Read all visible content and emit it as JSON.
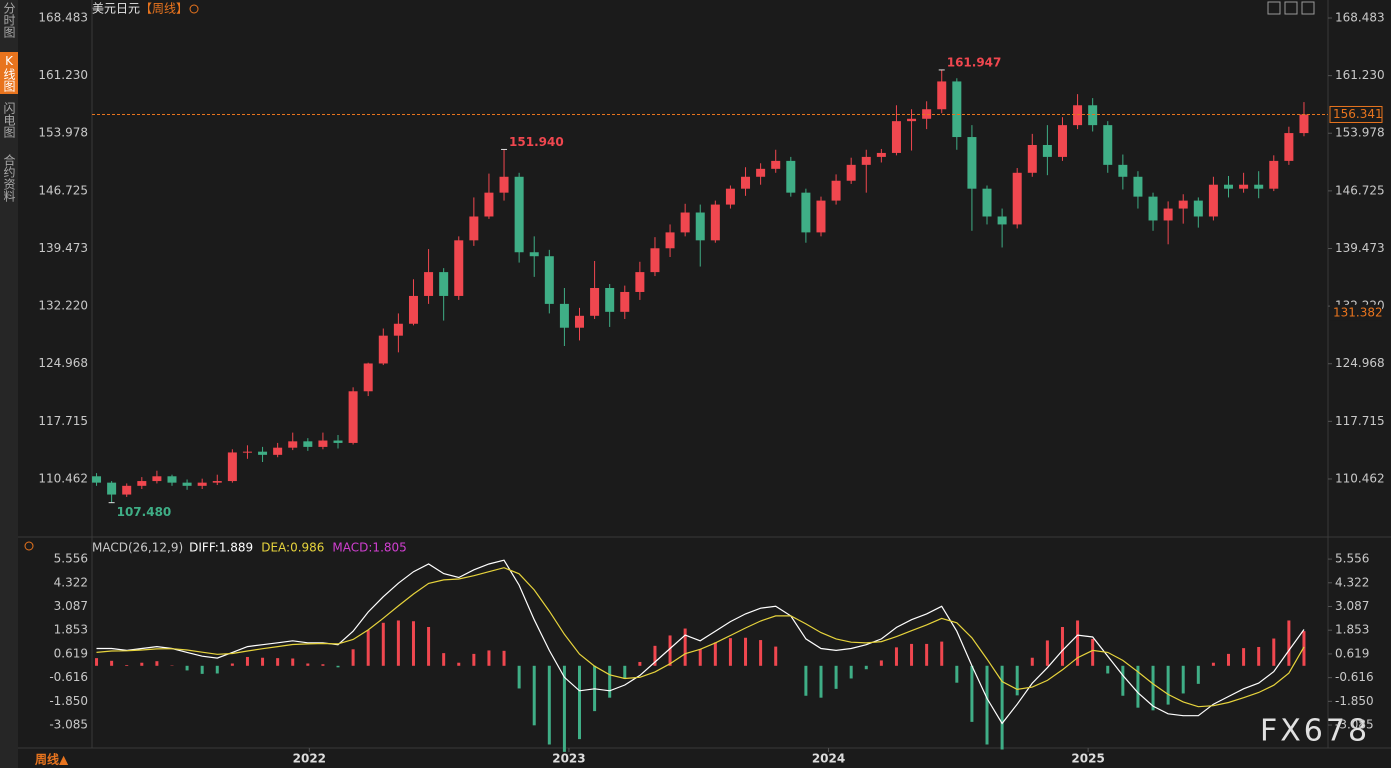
{
  "chart_data": {
    "type": "candlestick",
    "title": "美元日元",
    "period": "【周线】",
    "colors": {
      "up": "#f0474f",
      "down": "#3fae86"
    },
    "candles": [
      [
        110.8,
        111.2,
        109.6,
        110.0
      ],
      [
        110.0,
        110.2,
        107.48,
        108.5
      ],
      [
        108.5,
        109.9,
        108.2,
        109.6
      ],
      [
        109.6,
        110.7,
        109.2,
        110.2
      ],
      [
        110.2,
        111.5,
        109.9,
        110.8
      ],
      [
        110.8,
        111.0,
        109.6,
        110.0
      ],
      [
        110.0,
        110.4,
        109.1,
        109.6
      ],
      [
        109.6,
        110.5,
        109.2,
        110.0
      ],
      [
        110.0,
        111.0,
        109.7,
        110.2
      ],
      [
        110.2,
        114.2,
        110.0,
        113.8
      ],
      [
        113.8,
        114.7,
        113.0,
        113.9
      ],
      [
        113.9,
        114.5,
        112.6,
        113.5
      ],
      [
        113.5,
        115.0,
        113.2,
        114.4
      ],
      [
        114.4,
        116.3,
        114.1,
        115.2
      ],
      [
        115.2,
        115.6,
        114.0,
        114.5
      ],
      [
        114.5,
        116.3,
        114.2,
        115.3
      ],
      [
        115.3,
        116.0,
        114.3,
        115.0
      ],
      [
        115.0,
        122.0,
        114.8,
        121.5
      ],
      [
        121.5,
        125.1,
        120.9,
        125.0
      ],
      [
        125.0,
        129.4,
        124.8,
        128.5
      ],
      [
        128.5,
        131.3,
        126.4,
        130.0
      ],
      [
        130.0,
        135.6,
        129.8,
        133.5
      ],
      [
        133.5,
        139.4,
        132.5,
        136.5
      ],
      [
        136.5,
        137.0,
        130.4,
        133.5
      ],
      [
        133.5,
        141.0,
        133.0,
        140.5
      ],
      [
        140.5,
        145.9,
        139.8,
        143.5
      ],
      [
        143.5,
        148.9,
        143.2,
        146.5
      ],
      [
        146.5,
        151.94,
        145.5,
        148.5
      ],
      [
        148.5,
        149.0,
        137.7,
        139.0
      ],
      [
        139.0,
        141.0,
        135.9,
        138.5
      ],
      [
        138.5,
        139.3,
        131.3,
        132.5
      ],
      [
        132.5,
        134.5,
        127.2,
        129.5
      ],
      [
        129.5,
        132.0,
        127.9,
        131.0
      ],
      [
        131.0,
        137.9,
        130.6,
        134.5
      ],
      [
        134.5,
        135.0,
        129.6,
        131.5
      ],
      [
        131.5,
        134.8,
        130.6,
        134.0
      ],
      [
        134.0,
        137.8,
        133.0,
        136.5
      ],
      [
        136.5,
        140.9,
        136.0,
        139.5
      ],
      [
        139.5,
        142.5,
        138.4,
        141.5
      ],
      [
        141.5,
        145.1,
        141.0,
        144.0
      ],
      [
        144.0,
        145.0,
        137.2,
        140.5
      ],
      [
        140.5,
        145.5,
        140.2,
        145.0
      ],
      [
        145.0,
        147.4,
        144.5,
        147.0
      ],
      [
        147.0,
        149.7,
        146.1,
        148.5
      ],
      [
        148.5,
        150.2,
        147.5,
        149.5
      ],
      [
        149.5,
        151.9,
        149.0,
        150.5
      ],
      [
        150.5,
        151.0,
        146.0,
        146.5
      ],
      [
        146.5,
        147.0,
        140.2,
        141.5
      ],
      [
        141.5,
        146.0,
        141.0,
        145.5
      ],
      [
        145.5,
        148.8,
        145.0,
        148.0
      ],
      [
        148.0,
        150.9,
        147.6,
        150.0
      ],
      [
        150.0,
        151.9,
        146.5,
        151.0
      ],
      [
        151.0,
        152.0,
        150.3,
        151.5
      ],
      [
        151.5,
        157.5,
        151.2,
        155.5
      ],
      [
        155.5,
        157.0,
        151.8,
        155.8
      ],
      [
        155.8,
        158.0,
        154.5,
        157.0
      ],
      [
        157.0,
        161.947,
        156.5,
        160.5
      ],
      [
        160.5,
        160.9,
        151.9,
        153.5
      ],
      [
        153.5,
        155.0,
        141.7,
        147.0
      ],
      [
        147.0,
        147.4,
        142.5,
        143.5
      ],
      [
        143.5,
        144.5,
        139.6,
        142.5
      ],
      [
        142.5,
        149.6,
        142.0,
        149.0
      ],
      [
        149.0,
        153.9,
        148.5,
        152.5
      ],
      [
        152.5,
        155.0,
        148.7,
        151.0
      ],
      [
        151.0,
        156.0,
        150.5,
        155.0
      ],
      [
        155.0,
        158.9,
        154.5,
        157.5
      ],
      [
        157.5,
        158.4,
        154.2,
        155.0
      ],
      [
        155.0,
        155.5,
        149.0,
        150.0
      ],
      [
        150.0,
        151.3,
        146.9,
        148.5
      ],
      [
        148.5,
        149.2,
        144.5,
        146.0
      ],
      [
        146.0,
        146.5,
        141.7,
        143.0
      ],
      [
        143.0,
        145.4,
        140.0,
        144.5
      ],
      [
        144.5,
        146.3,
        142.6,
        145.5
      ],
      [
        145.5,
        145.9,
        142.1,
        143.5
      ],
      [
        143.5,
        148.5,
        143.0,
        147.5
      ],
      [
        147.5,
        148.6,
        145.9,
        147.0
      ],
      [
        147.0,
        149.0,
        146.5,
        147.5
      ],
      [
        147.5,
        149.2,
        145.8,
        147.0
      ],
      [
        147.0,
        151.2,
        146.7,
        150.5
      ],
      [
        150.5,
        154.8,
        150.0,
        154.0
      ],
      [
        154.0,
        157.9,
        153.6,
        156.341
      ]
    ],
    "xlim": [
      -0.3,
      80.4
    ],
    "xticks": [
      {
        "value": 14.1,
        "label": "2022"
      },
      {
        "value": 31.3,
        "label": "2023"
      },
      {
        "value": 48.5,
        "label": "2024"
      },
      {
        "value": 65.7,
        "label": "2025"
      }
    ],
    "ylim": [
      103.41,
      170.75
    ],
    "yticks": [
      168.483,
      {
        "value": 161.23,
        "label": "161.230"
      },
      153.978,
      146.725,
      139.473,
      {
        "value": 132.22,
        "label": "132.220"
      },
      124.968,
      117.715,
      110.462
    ],
    "annotations": [
      {
        "at": 27,
        "value": 151.94,
        "label": "151.940",
        "color": "#f0474f"
      },
      {
        "at": 56,
        "value": 161.947,
        "label": "161.947",
        "color": "#f0474f"
      },
      {
        "at": 1,
        "value": 107.48,
        "label": "107.480",
        "color": "#3fae86"
      }
    ],
    "price_lines": [
      {
        "value": 156.341,
        "label": "156.341",
        "color": "#e8741e",
        "style": "dashed"
      },
      {
        "value": 131.382,
        "label": "131.382",
        "color": "#e8741e"
      }
    ],
    "macd": {
      "title": "MACD(26,12,9)",
      "ylim": [
        -4.28,
        6.55
      ],
      "yticks": [
        5.556,
        4.322,
        3.087,
        1.853,
        0.619,
        -0.616,
        {
          "value": -1.85,
          "label": "-1.850"
        },
        -3.085
      ],
      "series": [
        {
          "name": "DIFF:1.889",
          "color": "#ffffff",
          "values": [
            0.9,
            0.9,
            0.8,
            0.9,
            1.0,
            0.9,
            0.7,
            0.5,
            0.4,
            0.7,
            1.0,
            1.1,
            1.2,
            1.3,
            1.2,
            1.2,
            1.1,
            1.8,
            2.8,
            3.6,
            4.3,
            4.9,
            5.3,
            4.8,
            4.6,
            5.0,
            5.3,
            5.5,
            4.2,
            2.4,
            0.8,
            -0.6,
            -1.3,
            -1.2,
            -1.3,
            -1.0,
            -0.5,
            0.2,
            0.9,
            1.6,
            1.3,
            1.8,
            2.3,
            2.7,
            3.0,
            3.1,
            2.6,
            1.4,
            0.9,
            0.8,
            0.9,
            1.1,
            1.4,
            2.0,
            2.4,
            2.7,
            3.1,
            1.8,
            0.0,
            -1.7,
            -3.0,
            -2.0,
            -0.9,
            -0.1,
            0.8,
            1.6,
            1.5,
            0.5,
            -0.5,
            -1.4,
            -2.1,
            -2.5,
            -2.6,
            -2.6,
            -2.0,
            -1.6,
            -1.2,
            -0.9,
            -0.3,
            0.8,
            1.889
          ]
        },
        {
          "name": "DEA:0.986",
          "color": "#e6d33c",
          "values": [
            0.7,
            0.77,
            0.78,
            0.82,
            0.88,
            0.89,
            0.82,
            0.71,
            0.6,
            0.64,
            0.77,
            0.89,
            1.0,
            1.11,
            1.14,
            1.16,
            1.14,
            1.37,
            1.87,
            2.48,
            3.12,
            3.74,
            4.29,
            4.47,
            4.52,
            4.69,
            4.9,
            5.11,
            4.79,
            3.95,
            2.85,
            1.64,
            0.61,
            -0.02,
            -0.47,
            -0.66,
            -0.6,
            -0.32,
            0.11,
            0.63,
            0.86,
            1.19,
            1.58,
            1.97,
            2.33,
            2.6,
            2.6,
            2.18,
            1.73,
            1.4,
            1.23,
            1.19,
            1.26,
            1.52,
            1.83,
            2.13,
            2.47,
            2.24,
            1.46,
            0.35,
            -0.82,
            -1.23,
            -1.11,
            -0.76,
            -0.21,
            0.42,
            0.8,
            0.7,
            0.28,
            -0.31,
            -0.94,
            -1.49,
            -1.88,
            -2.13,
            -2.08,
            -1.91,
            -1.66,
            -1.39,
            -1.01,
            -0.38,
            0.986
          ]
        },
        {
          "name": "MACD:1.805",
          "color": "#d03fd0",
          "values": [
            0.4,
            0.26,
            0.04,
            0.16,
            0.24,
            0.02,
            -0.24,
            -0.42,
            -0.4,
            0.12,
            0.46,
            0.42,
            0.4,
            0.38,
            0.12,
            0.08,
            -0.08,
            0.86,
            1.86,
            2.24,
            2.36,
            2.32,
            2.02,
            0.66,
            0.16,
            0.62,
            0.8,
            0.78,
            -1.18,
            -3.1,
            -4.1,
            -4.48,
            -3.82,
            -2.36,
            -1.66,
            -0.68,
            0.2,
            1.04,
            1.58,
            1.94,
            0.88,
            1.22,
            1.44,
            1.46,
            1.34,
            1.0,
            0.0,
            -1.56,
            -1.66,
            -1.2,
            -0.66,
            -0.18,
            0.28,
            0.96,
            1.14,
            1.14,
            1.26,
            -0.88,
            -2.92,
            -4.1,
            -4.36,
            -1.54,
            0.42,
            1.32,
            2.02,
            2.36,
            1.4,
            -0.4,
            -1.56,
            -2.18,
            -2.32,
            -2.02,
            -1.44,
            -0.94,
            0.16,
            0.62,
            0.92,
            0.98,
            1.42,
            2.36,
            1.805
          ]
        }
      ]
    }
  },
  "sidebar": [
    "分时图",
    "K线图",
    "闪电图",
    "合约资料"
  ],
  "footer": "周线▲",
  "watermark": "FX678"
}
